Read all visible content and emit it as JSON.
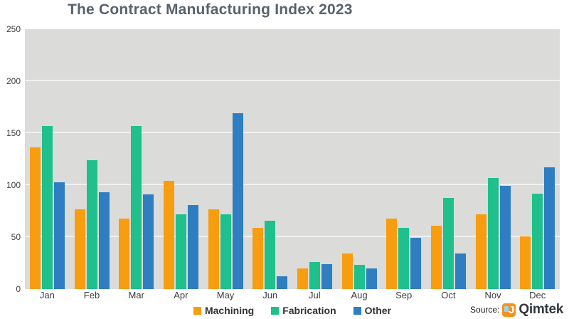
{
  "chart_data": {
    "type": "bar",
    "title": "The Contract Manufacturing Index 2023",
    "xlabel": "",
    "ylabel": "",
    "categories": [
      "Jan",
      "Feb",
      "Mar",
      "Apr",
      "May",
      "Jun",
      "Jul",
      "Aug",
      "Sep",
      "Oct",
      "Nov",
      "Dec"
    ],
    "series": [
      {
        "name": "Machining",
        "color": "#F89C10",
        "values": [
          136,
          77,
          68,
          104,
          77,
          59,
          20,
          34,
          68,
          61,
          72,
          51
        ]
      },
      {
        "name": "Fabrication",
        "color": "#1FC08C",
        "values": [
          157,
          124,
          157,
          72,
          72,
          66,
          26,
          23,
          59,
          88,
          107,
          92
        ]
      },
      {
        "name": "Other",
        "color": "#2E7EC1",
        "values": [
          103,
          93,
          91,
          81,
          169,
          12,
          24,
          20,
          49,
          34,
          99,
          117
        ]
      }
    ],
    "ylim": [
      0,
      250
    ],
    "yticks": [
      0,
      50,
      100,
      150,
      200,
      250
    ],
    "grid": true,
    "legend_position": "bottom"
  },
  "source": {
    "label": "Source:",
    "brand": "Qimtek",
    "logo_glyph": "J"
  },
  "colors": {
    "page_background": "#FFFFFF",
    "plot_background": "#DBDBD9",
    "gridline": "rgba(255,255,255,0.62)",
    "title_text": "#58626E",
    "axis_text": "#3D3D3D",
    "legend_text": "#333333",
    "logo_orange": "#F6921E"
  }
}
